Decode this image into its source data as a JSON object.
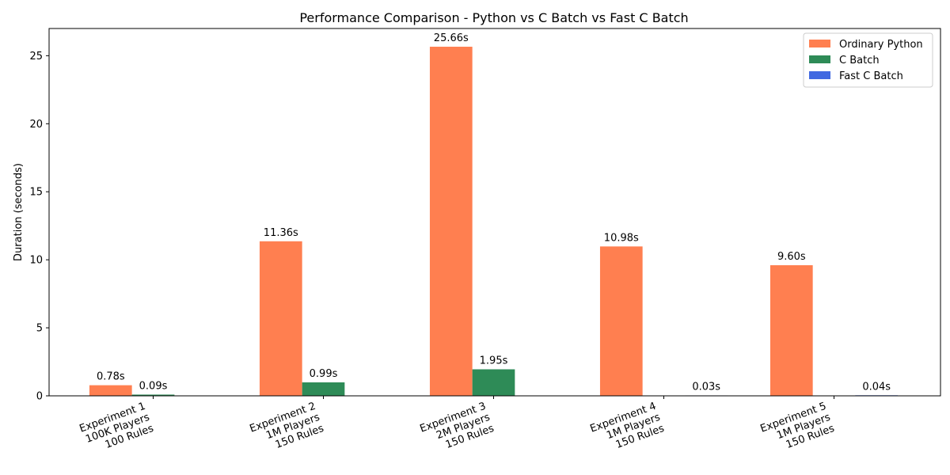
{
  "chart_data": {
    "type": "bar",
    "title": "Performance Comparison - Python vs C Batch vs Fast C Batch",
    "xlabel": "",
    "ylabel": "Duration (seconds)",
    "ylim": [
      0,
      27
    ],
    "yticks": [
      0,
      5,
      10,
      15,
      20,
      25
    ],
    "grid": false,
    "legend_position": "top-right",
    "categories": [
      [
        "Experiment 1",
        "100K Players",
        "100 Rules"
      ],
      [
        "Experiment 2",
        "1M Players",
        "150 Rules"
      ],
      [
        "Experiment 3",
        "2M Players",
        "150 Rules"
      ],
      [
        "Experiment 4",
        "1M Players",
        "150 Rules"
      ],
      [
        "Experiment 5",
        "1M Players",
        "150 Rules"
      ]
    ],
    "series": [
      {
        "name": "Ordinary Python",
        "color": "#ff7f50",
        "values": [
          0.78,
          11.36,
          25.66,
          10.98,
          9.6
        ],
        "labels": [
          "0.78s",
          "11.36s",
          "25.66s",
          "10.98s",
          "9.60s"
        ]
      },
      {
        "name": "C Batch",
        "color": "#2e8b57",
        "values": [
          0.09,
          0.99,
          1.95,
          null,
          null
        ],
        "labels": [
          "0.09s",
          "0.99s",
          "1.95s",
          null,
          null
        ]
      },
      {
        "name": "Fast C Batch",
        "color": "#4169e1",
        "values": [
          null,
          null,
          null,
          0.03,
          0.04
        ],
        "labels": [
          null,
          null,
          null,
          "0.03s",
          "0.04s"
        ]
      }
    ]
  }
}
